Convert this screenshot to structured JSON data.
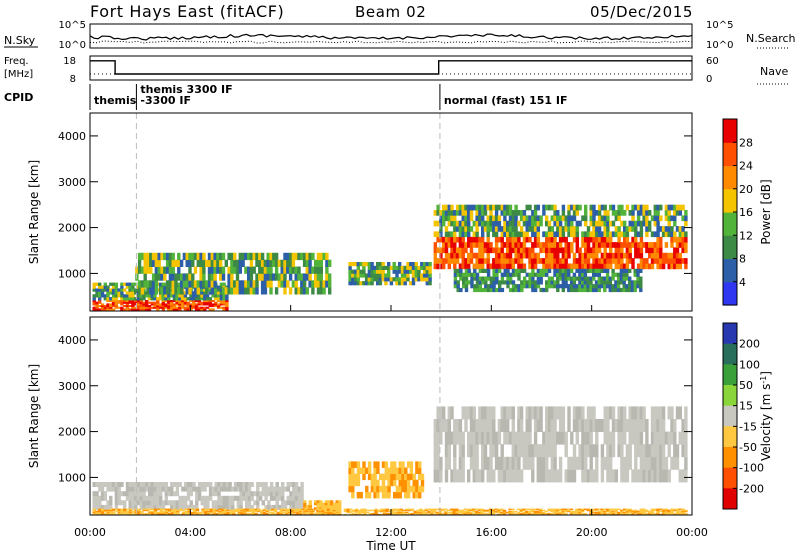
{
  "header": {
    "title": "Fort Hays East (fitACF)",
    "beam": "Beam 02",
    "date": "05/Dec/2015"
  },
  "chart_data": [
    {
      "type": "line",
      "name_left": "N.Sky",
      "name_right": "N.Search",
      "left_ticks": [
        "10^5",
        "10^0"
      ],
      "right_ticks": [
        "10^5",
        "10^0"
      ]
    },
    {
      "type": "line",
      "name_left": "Freq. [MHz]",
      "name_right": "Nave",
      "left_ticks": [
        "18",
        "8"
      ],
      "right_ticks": [
        "60",
        "0"
      ],
      "freq_segments": [
        {
          "x0": 0,
          "x1": 1.0,
          "y": 16
        },
        {
          "x0": 1.0,
          "x1": 13.9,
          "y": 10.5
        },
        {
          "x0": 13.9,
          "x1": 24,
          "y": 16
        }
      ]
    },
    {
      "type": "table",
      "label": "CPID",
      "modes": [
        {
          "t": 0.0,
          "lines": [
            "themis"
          ]
        },
        {
          "t": 1.85,
          "lines": [
            "themis 3300 IF",
            "-3300 IF"
          ]
        },
        {
          "t": 13.95,
          "lines": [
            "normal (fast) 151 IF"
          ]
        }
      ]
    },
    {
      "type": "heatmap",
      "parameter": "Power",
      "ylabel": "Slant Range [km]",
      "ylim": [
        180,
        4500
      ],
      "yticks": [
        1000,
        2000,
        3000,
        4000
      ],
      "colorbar_label": "Power [dB]",
      "colorbar_ticks": [
        "4",
        "8",
        "12",
        "16",
        "20",
        "24",
        "28"
      ],
      "colorbar_colors": [
        "#2f38f0",
        "#2c5fa8",
        "#3d8a46",
        "#52b33a",
        "#f5c400",
        "#ff8a00",
        "#ff5000",
        "#e80000"
      ],
      "echo_regions": [
        {
          "t0": 0.1,
          "t1": 5.5,
          "r0": 200,
          "r1": 420,
          "level": "high"
        },
        {
          "t0": 0.1,
          "t1": 5.5,
          "r0": 420,
          "r1": 800,
          "level": "medium"
        },
        {
          "t0": 1.8,
          "t1": 9.6,
          "r0": 550,
          "r1": 1450,
          "level": "medium"
        },
        {
          "t0": 10.3,
          "t1": 13.6,
          "r0": 750,
          "r1": 1250,
          "level": "medium"
        },
        {
          "t0": 13.7,
          "t1": 23.8,
          "r0": 1100,
          "r1": 1800,
          "level": "high"
        },
        {
          "t0": 13.7,
          "t1": 23.8,
          "r0": 1800,
          "r1": 2500,
          "level": "medium"
        },
        {
          "t0": 14.5,
          "t1": 22.0,
          "r0": 600,
          "r1": 1100,
          "level": "low"
        }
      ]
    },
    {
      "type": "heatmap",
      "parameter": "Velocity",
      "ylabel": "Slant Range [km]",
      "ylim": [
        180,
        4500
      ],
      "yticks": [
        1000,
        2000,
        3000,
        4000
      ],
      "colorbar_label": "Velocity [m s^-1]",
      "colorbar_ticks": [
        "200",
        "100",
        "50",
        "15",
        "-15",
        "-50",
        "-100",
        "-200"
      ],
      "colorbar_colors": [
        "#2838b0",
        "#286e5a",
        "#3aa03a",
        "#8ad63a",
        "#c8c8c0",
        "#ffc840",
        "#ff9000",
        "#ff5000",
        "#e00000"
      ],
      "echo_regions": [
        {
          "t0": 0.1,
          "t1": 8.5,
          "r0": 300,
          "r1": 900,
          "level": "grey"
        },
        {
          "t0": 8.5,
          "t1": 10.0,
          "r0": 200,
          "r1": 500,
          "level": "orange"
        },
        {
          "t0": 10.3,
          "t1": 13.3,
          "r0": 550,
          "r1": 1350,
          "level": "orange"
        },
        {
          "t0": 13.7,
          "t1": 23.8,
          "r0": 900,
          "r1": 2550,
          "level": "grey"
        },
        {
          "t0": 0.1,
          "t1": 23.8,
          "r0": 180,
          "r1": 320,
          "level": "orange"
        }
      ]
    }
  ],
  "x_axis": {
    "xlabel": "Time UT",
    "ticks": [
      "00:00",
      "04:00",
      "08:00",
      "12:00",
      "16:00",
      "20:00",
      "00:00"
    ],
    "xlim": [
      0,
      24
    ]
  }
}
